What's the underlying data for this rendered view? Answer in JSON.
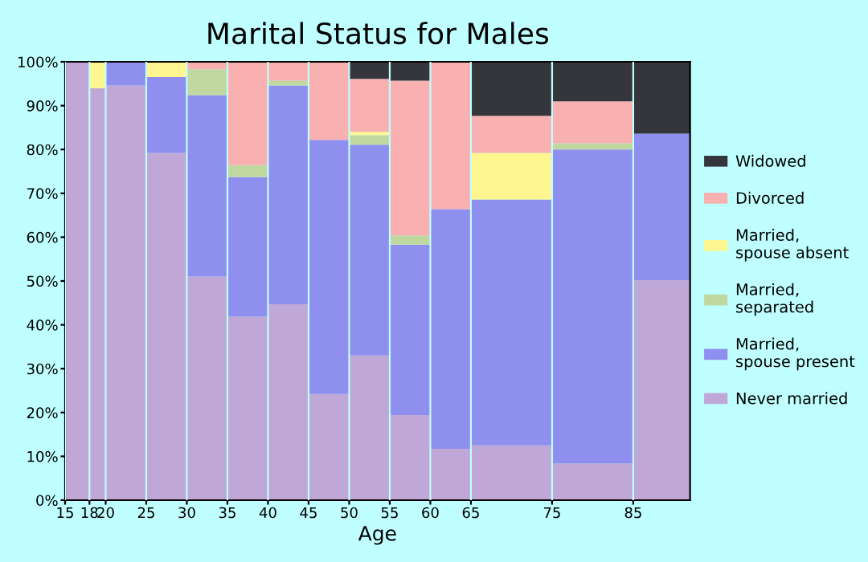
{
  "chart_data": {
    "type": "bar",
    "stacked": true,
    "title": "Marital Status for Males",
    "xlabel": "Age",
    "x": [
      16.5,
      19,
      22.5,
      27.5,
      32.5,
      37.5,
      42.5,
      47.5,
      52.5,
      57.5,
      62.5,
      70,
      80,
      88.5
    ],
    "xlim": [
      15,
      92
    ],
    "xticks": [
      15,
      18,
      20,
      25,
      30,
      35,
      40,
      45,
      50,
      55,
      60,
      65,
      75,
      85
    ],
    "ylim": [
      0,
      100
    ],
    "yticks": [
      {
        "value": 0,
        "label": "0%"
      },
      {
        "value": 10,
        "label": "10%"
      },
      {
        "value": 20,
        "label": "20%"
      },
      {
        "value": 30,
        "label": "30%"
      },
      {
        "value": 40,
        "label": "40%"
      },
      {
        "value": 50,
        "label": "50%"
      },
      {
        "value": 60,
        "label": "60%"
      },
      {
        "value": 70,
        "label": "70%"
      },
      {
        "value": 80,
        "label": "80%"
      },
      {
        "value": 90,
        "label": "90%"
      },
      {
        "value": 100,
        "label": "100%"
      }
    ],
    "grid": "x",
    "legend": "right",
    "series": [
      {
        "name": "Never married",
        "color": "#bfa7d8",
        "values": [
          100,
          94,
          94.6,
          79.2,
          51,
          41.9,
          44.7,
          24.2,
          33,
          19.4,
          11.7,
          12.5,
          8.4,
          50.2
        ]
      },
      {
        "name": "Married,\nspouse present",
        "color": "#8f8ff0",
        "values": [
          null,
          null,
          5.4,
          17.3,
          41.4,
          31.8,
          49.9,
          58,
          48.1,
          38.9,
          54.7,
          56.1,
          71.6,
          33.4
        ]
      },
      {
        "name": "Married,\nseparated",
        "color": "#c0d8a0",
        "values": [
          null,
          null,
          null,
          null,
          5.9,
          2.7,
          1.1,
          null,
          2.2,
          2.1,
          null,
          null,
          1.4,
          null
        ]
      },
      {
        "name": "Married,\nspouse absent",
        "color": "#fff68f",
        "values": [
          null,
          6,
          null,
          3.5,
          null,
          null,
          null,
          null,
          0.7,
          null,
          null,
          10.6,
          null,
          null
        ]
      },
      {
        "name": "Divorced",
        "color": "#f8b0b0",
        "values": [
          null,
          null,
          null,
          null,
          1.7,
          23.6,
          4.3,
          17.8,
          12.1,
          35.3,
          33.6,
          8.5,
          9.6,
          null
        ]
      },
      {
        "name": "Widowed",
        "color": "#35363b",
        "values": [
          null,
          null,
          null,
          null,
          null,
          null,
          null,
          null,
          3.9,
          4.3,
          null,
          12.3,
          9,
          16.4
        ]
      }
    ]
  }
}
